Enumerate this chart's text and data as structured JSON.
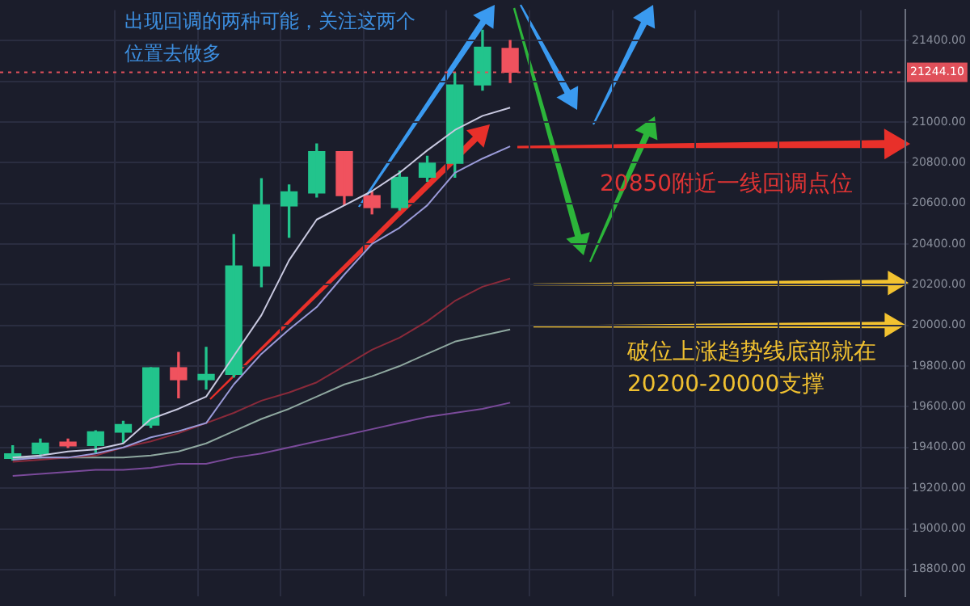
{
  "chart_data": {
    "type": "candlestick",
    "categories": [
      null,
      null,
      null,
      null,
      null,
      null,
      null,
      null,
      null,
      null,
      null,
      null,
      null,
      null,
      null,
      null,
      null,
      null,
      null
    ],
    "ohlc": [
      [
        19346,
        19408,
        19338,
        19369
      ],
      [
        19369,
        19441,
        19349,
        19421
      ],
      [
        19426,
        19441,
        19400,
        19408
      ],
      [
        19410,
        19482,
        19375,
        19477
      ],
      [
        19475,
        19529,
        19426,
        19513
      ],
      [
        19510,
        19792,
        19498,
        19792
      ],
      [
        19792,
        19867,
        19644,
        19733
      ],
      [
        19733,
        19892,
        19687,
        19759
      ],
      [
        19759,
        20446,
        19746,
        20292
      ],
      [
        20292,
        20721,
        20190,
        20592
      ],
      [
        20587,
        20690,
        20433,
        20656
      ],
      [
        20651,
        20892,
        20631,
        20854
      ],
      [
        20854,
        20854,
        20592,
        20638
      ],
      [
        20638,
        20656,
        20548,
        20579
      ],
      [
        20579,
        20759,
        20567,
        20728
      ],
      [
        20728,
        20831,
        20708,
        20797
      ],
      [
        20797,
        21240,
        20728,
        21182
      ],
      [
        21182,
        21451,
        21156,
        21367
      ],
      [
        21361,
        21400,
        21194,
        21244.1
      ]
    ],
    "colors": [
      "#22c48c",
      "#22c48c",
      "#f0525e",
      "#22c48c",
      "#22c48c",
      "#22c48c",
      "#f0525e",
      "#22c48c",
      "#22c48c",
      "#22c48c",
      "#22c48c",
      "#22c48c",
      "#f0525e",
      "#f0525e",
      "#22c48c",
      "#22c48c",
      "#22c48c",
      "#22c48c",
      "#f0525e"
    ],
    "series": [
      {
        "type": "line",
        "color": "#c9c9e0",
        "values": [
          19350,
          19360,
          19380,
          19390,
          19420,
          19540,
          19590,
          19650,
          19850,
          20050,
          20320,
          20520,
          20590,
          20660,
          20750,
          20860,
          20960,
          21030,
          21070
        ]
      },
      {
        "type": "line",
        "color": "#9a9ad8",
        "values": [
          19340,
          19350,
          19350,
          19370,
          19400,
          19450,
          19480,
          19520,
          19710,
          19860,
          19980,
          20090,
          20250,
          20400,
          20480,
          20590,
          20750,
          20820,
          20880
        ]
      },
      {
        "type": "line",
        "color": "#8a2a3a",
        "values": [
          19330,
          19340,
          19350,
          19360,
          19400,
          19430,
          19470,
          19520,
          19570,
          19630,
          19670,
          19720,
          19800,
          19880,
          19940,
          20020,
          20120,
          20190,
          20230
        ]
      },
      {
        "type": "line",
        "color": "#8fa8a0",
        "values": [
          19350,
          19350,
          19350,
          19350,
          19350,
          19360,
          19380,
          19420,
          19480,
          19540,
          19590,
          19650,
          19710,
          19750,
          19800,
          19860,
          19920,
          19950,
          19980
        ]
      },
      {
        "type": "line",
        "color": "#7a4a9a",
        "values": [
          19260,
          19270,
          19280,
          19290,
          19290,
          19300,
          19320,
          19320,
          19350,
          19370,
          19400,
          19430,
          19460,
          19490,
          19520,
          19550,
          19570,
          19590,
          19620
        ]
      }
    ],
    "ylim": [
      18670,
      21550
    ],
    "yticks": [
      {
        "value": 18800,
        "label": "18800.00"
      },
      {
        "value": 19000,
        "label": "19000.00"
      },
      {
        "value": 19200,
        "label": "19200.00"
      },
      {
        "value": 19400,
        "label": "19400.00"
      },
      {
        "value": 19600,
        "label": "19600.00"
      },
      {
        "value": 19800,
        "label": "19800.00"
      },
      {
        "value": 20000,
        "label": "20000.00"
      },
      {
        "value": 20200,
        "label": "20200.00"
      },
      {
        "value": 20400,
        "label": "20400.00"
      },
      {
        "value": 20600,
        "label": "20600.00"
      },
      {
        "value": 20800,
        "label": "20800.00"
      },
      {
        "value": 21000,
        "label": "21000.00"
      },
      {
        "value": 21200,
        "label": null
      },
      {
        "value": 21400,
        "label": "21400.00"
      }
    ],
    "grid": true,
    "tick_labels": "y",
    "ref_lines": [
      {
        "axis": "y",
        "value": 21244.1,
        "label": "21244.10",
        "color": "#e0505a",
        "line_style": "dotted"
      }
    ],
    "annotations": [
      "出现回调的两种可能，关注这两个位置去做多",
      "20850附近一线回调点位",
      "破位上涨趋势线底部就在20200-20000支撑"
    ]
  }
}
